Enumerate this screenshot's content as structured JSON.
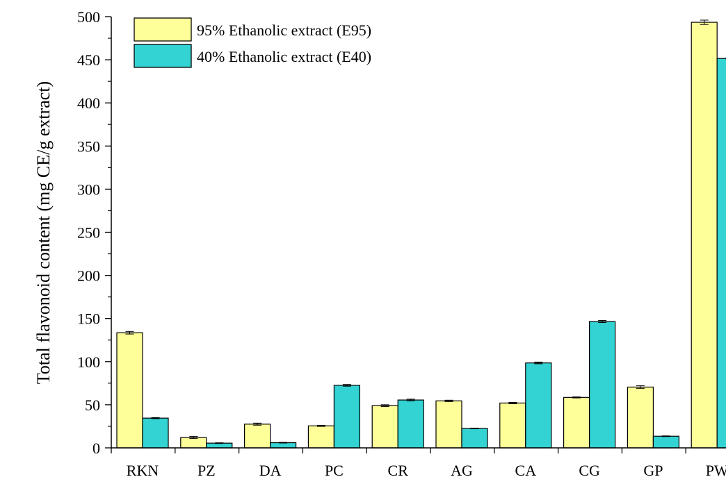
{
  "chart_data": {
    "type": "bar",
    "title": "",
    "xlabel": "",
    "ylabel": "Total flavonoid content (mg CE/g extract)",
    "ylim": [
      0,
      500
    ],
    "yticks": [
      0,
      50,
      100,
      150,
      200,
      250,
      300,
      350,
      400,
      450,
      500
    ],
    "categories": [
      "RKN",
      "PZ",
      "DA",
      "PC",
      "CR",
      "AG",
      "CA",
      "CG",
      "GP",
      "PW"
    ],
    "series": [
      {
        "name": "95% Ethanolic extract (E95)",
        "color": "#FFFF99",
        "values": [
          133.5,
          12,
          27.5,
          25.5,
          49,
          54.5,
          52,
          58.5,
          70.5,
          493.5
        ],
        "errors": [
          1.5,
          1.2,
          1.2,
          0.6,
          1.0,
          0.8,
          0.8,
          0.6,
          1.5,
          2.5
        ]
      },
      {
        "name": "40% Ethanolic extract (E40)",
        "color": "#33D3D3",
        "values": [
          34.5,
          5.5,
          6,
          72.5,
          55.5,
          22.5,
          98.5,
          146.5,
          13.5,
          451.5
        ],
        "errors": [
          0.6,
          0.4,
          0.4,
          1.0,
          1.0,
          0.4,
          1.0,
          1.2,
          0.4,
          1.0
        ]
      }
    ],
    "legend_position": "top-left",
    "grid": false
  }
}
